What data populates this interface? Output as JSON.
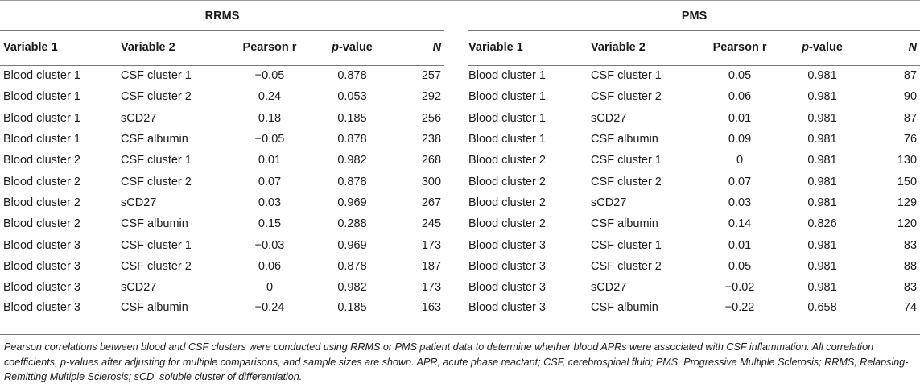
{
  "groups": {
    "left": "RRMS",
    "right": "PMS"
  },
  "headers": {
    "var1": "Variable 1",
    "var2": "Variable 2",
    "pearson": "Pearson r",
    "p_prefix": "p",
    "p_suffix": "-value",
    "n": "N"
  },
  "rrms": [
    {
      "v1": "Blood cluster 1",
      "v2": "CSF cluster 1",
      "r": "−0.05",
      "p": "0.878",
      "n": "257"
    },
    {
      "v1": "Blood cluster 1",
      "v2": "CSF cluster 2",
      "r": "0.24",
      "p": "0.053",
      "n": "292"
    },
    {
      "v1": "Blood cluster 1",
      "v2": "sCD27",
      "r": "0.18",
      "p": "0.185",
      "n": "256"
    },
    {
      "v1": "Blood cluster 1",
      "v2": "CSF albumin",
      "r": "−0.05",
      "p": "0.878",
      "n": "238"
    },
    {
      "v1": "Blood cluster 2",
      "v2": "CSF cluster 1",
      "r": "0.01",
      "p": "0.982",
      "n": "268"
    },
    {
      "v1": "Blood cluster 2",
      "v2": "CSF cluster 2",
      "r": "0.07",
      "p": "0.878",
      "n": "300"
    },
    {
      "v1": "Blood cluster 2",
      "v2": "sCD27",
      "r": "0.03",
      "p": "0.969",
      "n": "267"
    },
    {
      "v1": "Blood cluster 2",
      "v2": "CSF albumin",
      "r": "0.15",
      "p": "0.288",
      "n": "245"
    },
    {
      "v1": "Blood cluster 3",
      "v2": "CSF cluster 1",
      "r": "−0.03",
      "p": "0.969",
      "n": "173"
    },
    {
      "v1": "Blood cluster 3",
      "v2": "CSF cluster 2",
      "r": "0.06",
      "p": "0.878",
      "n": "187"
    },
    {
      "v1": "Blood cluster 3",
      "v2": "sCD27",
      "r": "0",
      "p": "0.982",
      "n": "173"
    },
    {
      "v1": "Blood cluster 3",
      "v2": "CSF albumin",
      "r": "−0.24",
      "p": "0.185",
      "n": "163"
    }
  ],
  "pms": [
    {
      "v1": "Blood cluster 1",
      "v2": "CSF cluster 1",
      "r": "0.05",
      "p": "0.981",
      "n": "87"
    },
    {
      "v1": "Blood cluster 1",
      "v2": "CSF cluster 2",
      "r": "0.06",
      "p": "0.981",
      "n": "90"
    },
    {
      "v1": "Blood cluster 1",
      "v2": "sCD27",
      "r": "0.01",
      "p": "0.981",
      "n": "87"
    },
    {
      "v1": "Blood cluster 1",
      "v2": "CSF albumin",
      "r": "0.09",
      "p": "0.981",
      "n": "76"
    },
    {
      "v1": "Blood cluster 2",
      "v2": "CSF cluster 1",
      "r": "0",
      "p": "0.981",
      "n": "130"
    },
    {
      "v1": "Blood cluster 2",
      "v2": "CSF cluster 2",
      "r": "0.07",
      "p": "0.981",
      "n": "150"
    },
    {
      "v1": "Blood cluster 2",
      "v2": "sCD27",
      "r": "0.03",
      "p": "0.981",
      "n": "129"
    },
    {
      "v1": "Blood cluster 2",
      "v2": "CSF albumin",
      "r": "0.14",
      "p": "0.826",
      "n": "120"
    },
    {
      "v1": "Blood cluster 3",
      "v2": "CSF cluster 1",
      "r": "0.01",
      "p": "0.981",
      "n": "83"
    },
    {
      "v1": "Blood cluster 3",
      "v2": "CSF cluster 2",
      "r": "0.05",
      "p": "0.981",
      "n": "88"
    },
    {
      "v1": "Blood cluster 3",
      "v2": "sCD27",
      "r": "−0.02",
      "p": "0.981",
      "n": "83"
    },
    {
      "v1": "Blood cluster 3",
      "v2": "CSF albumin",
      "r": "−0.22",
      "p": "0.658",
      "n": "74"
    }
  ],
  "footnote": "Pearson correlations between blood and CSF clusters were conducted using RRMS or PMS patient data to determine whether blood APRs were associated with CSF inflammation. All correlation coefficients, p-values after adjusting for multiple comparisons, and sample sizes are shown. APR, acute phase reactant; CSF, cerebrospinal fluid; PMS, Progressive Multiple Sclerosis; RRMS, Relapsing-Remitting Multiple Sclerosis; sCD, soluble cluster of differentiation."
}
